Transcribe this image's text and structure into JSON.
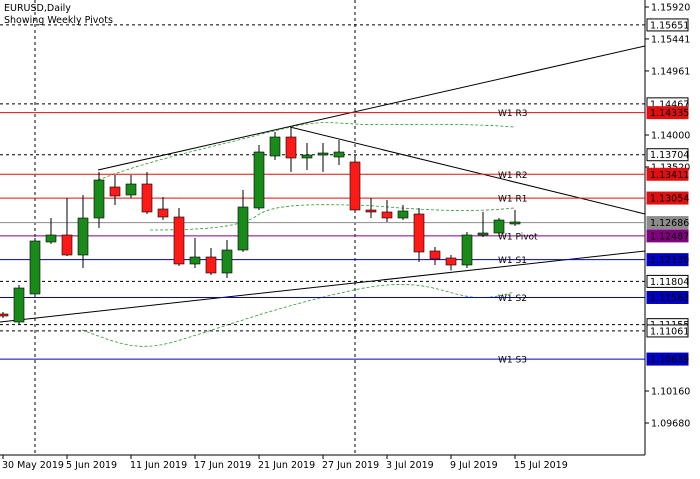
{
  "chart_data": {
    "type": "candlestick",
    "title": "EURUSD,Daily",
    "subtitle": "Showing Weekly Pivots",
    "categories": [
      "30 May 2019",
      null,
      null,
      null,
      "5 Jun 2019",
      null,
      null,
      null,
      "11 Jun 2019",
      null,
      null,
      null,
      "17 Jun 2019",
      null,
      null,
      null,
      "21 Jun 2019",
      null,
      null,
      null,
      "27 Jun 2019",
      null,
      null,
      null,
      "3 Jul 2019",
      null,
      null,
      null,
      "9 Jul 2019",
      null,
      null,
      null,
      "15 Jul 2019"
    ],
    "open": [
      1.11315,
      1.11195,
      1.11615,
      1.12395,
      1.125,
      1.122,
      1.12755,
      1.1322,
      1.131,
      1.13265,
      1.1289,
      1.1277,
      1.12065,
      1.1217,
      1.1193,
      1.12275,
      1.12905,
      1.13685,
      1.1397,
      1.13655,
      1.137,
      1.1367,
      1.13595,
      1.12875,
      1.12845,
      1.12755,
      1.12815,
      1.1226,
      1.12155,
      1.1205,
      1.125,
      1.1253,
      1.12665
    ],
    "high": [
      1.11345,
      1.1175,
      1.12455,
      1.12755,
      1.13055,
      1.131,
      1.13445,
      1.134,
      1.134,
      1.13445,
      1.1307,
      1.12905,
      1.12455,
      1.12305,
      1.12425,
      1.13175,
      1.1385,
      1.14045,
      1.1412,
      1.1388,
      1.1388,
      1.13925,
      1.137,
      1.13055,
      1.13025,
      1.1295,
      1.12905,
      1.1232,
      1.122,
      1.12545,
      1.12845,
      1.12755,
      1.12875
    ],
    "low": [
      1.11255,
      1.1115,
      1.11585,
      1.12365,
      1.12185,
      1.12005,
      1.12605,
      1.1295,
      1.13055,
      1.12815,
      1.12725,
      1.12035,
      1.12005,
      1.119,
      1.11855,
      1.12245,
      1.12875,
      1.13625,
      1.13445,
      1.13475,
      1.13445,
      1.1355,
      1.1283,
      1.12755,
      1.12695,
      1.12725,
      1.12095,
      1.1205,
      1.1197,
      1.12005,
      1.1247,
      1.12485,
      1.12635
    ],
    "close": [
      1.11285,
      1.11705,
      1.1241,
      1.125,
      1.122,
      1.12755,
      1.13325,
      1.13085,
      1.13265,
      1.12845,
      1.1277,
      1.12065,
      1.1217,
      1.1193,
      1.12275,
      1.1292,
      1.13745,
      1.1397,
      1.13655,
      1.137,
      1.1373,
      1.13745,
      1.12875,
      1.12845,
      1.12755,
      1.1286,
      1.12245,
      1.1214,
      1.1205,
      1.125,
      1.1253,
      1.12725,
      1.12695
    ],
    "up_color": "#1a8a1a",
    "down_color": "#ff1a1a",
    "ylim": [
      1.092,
      1.15995
    ],
    "yticks": [
      {
        "value": 1.1592,
        "label": "1.15920"
      },
      1.15441,
      1.14961,
      {
        "value": 1.14,
        "label": "1.14000"
      },
      {
        "value": 1.1352,
        "label": "1.13520"
      },
      {
        "value": 1.1016,
        "label": "1.10160"
      },
      {
        "value": 1.0968,
        "label": "1.09680"
      }
    ],
    "levels": [
      {
        "value": 1.15651,
        "color": "#000000",
        "dashed": true
      },
      {
        "value": 1.14467,
        "color": "#000000",
        "dashed": true
      },
      {
        "value": 1.14335,
        "color": "#e01010",
        "name": "W1 R3"
      },
      {
        "value": 1.13704,
        "color": "#000000",
        "dashed": true
      },
      {
        "value": 1.13411,
        "color": "#e01010",
        "name": "W1 R2"
      },
      {
        "value": 1.13054,
        "color": "#e01010",
        "name": "W1 R1"
      },
      {
        "value": 1.12686,
        "color": "#8c8c8c"
      },
      {
        "value": 1.12487,
        "color": "#800080",
        "name": "W1 Pivot"
      },
      {
        "value": 1.1213,
        "value_label": "1.12130",
        "color": "#0000c0",
        "name": "W1 S1"
      },
      {
        "value": 1.11804,
        "color": "#000000",
        "dashed": true
      },
      {
        "value": 1.11563,
        "color": "#0000c0",
        "name": "W1 S2"
      },
      {
        "value": 1.11155,
        "color": "#000000",
        "dashed": true
      },
      {
        "value": 1.11061,
        "color": "#000000",
        "dashed": true
      },
      {
        "value": 1.10639,
        "color": "#0000c0",
        "name": "W1 S3"
      }
    ]
  }
}
